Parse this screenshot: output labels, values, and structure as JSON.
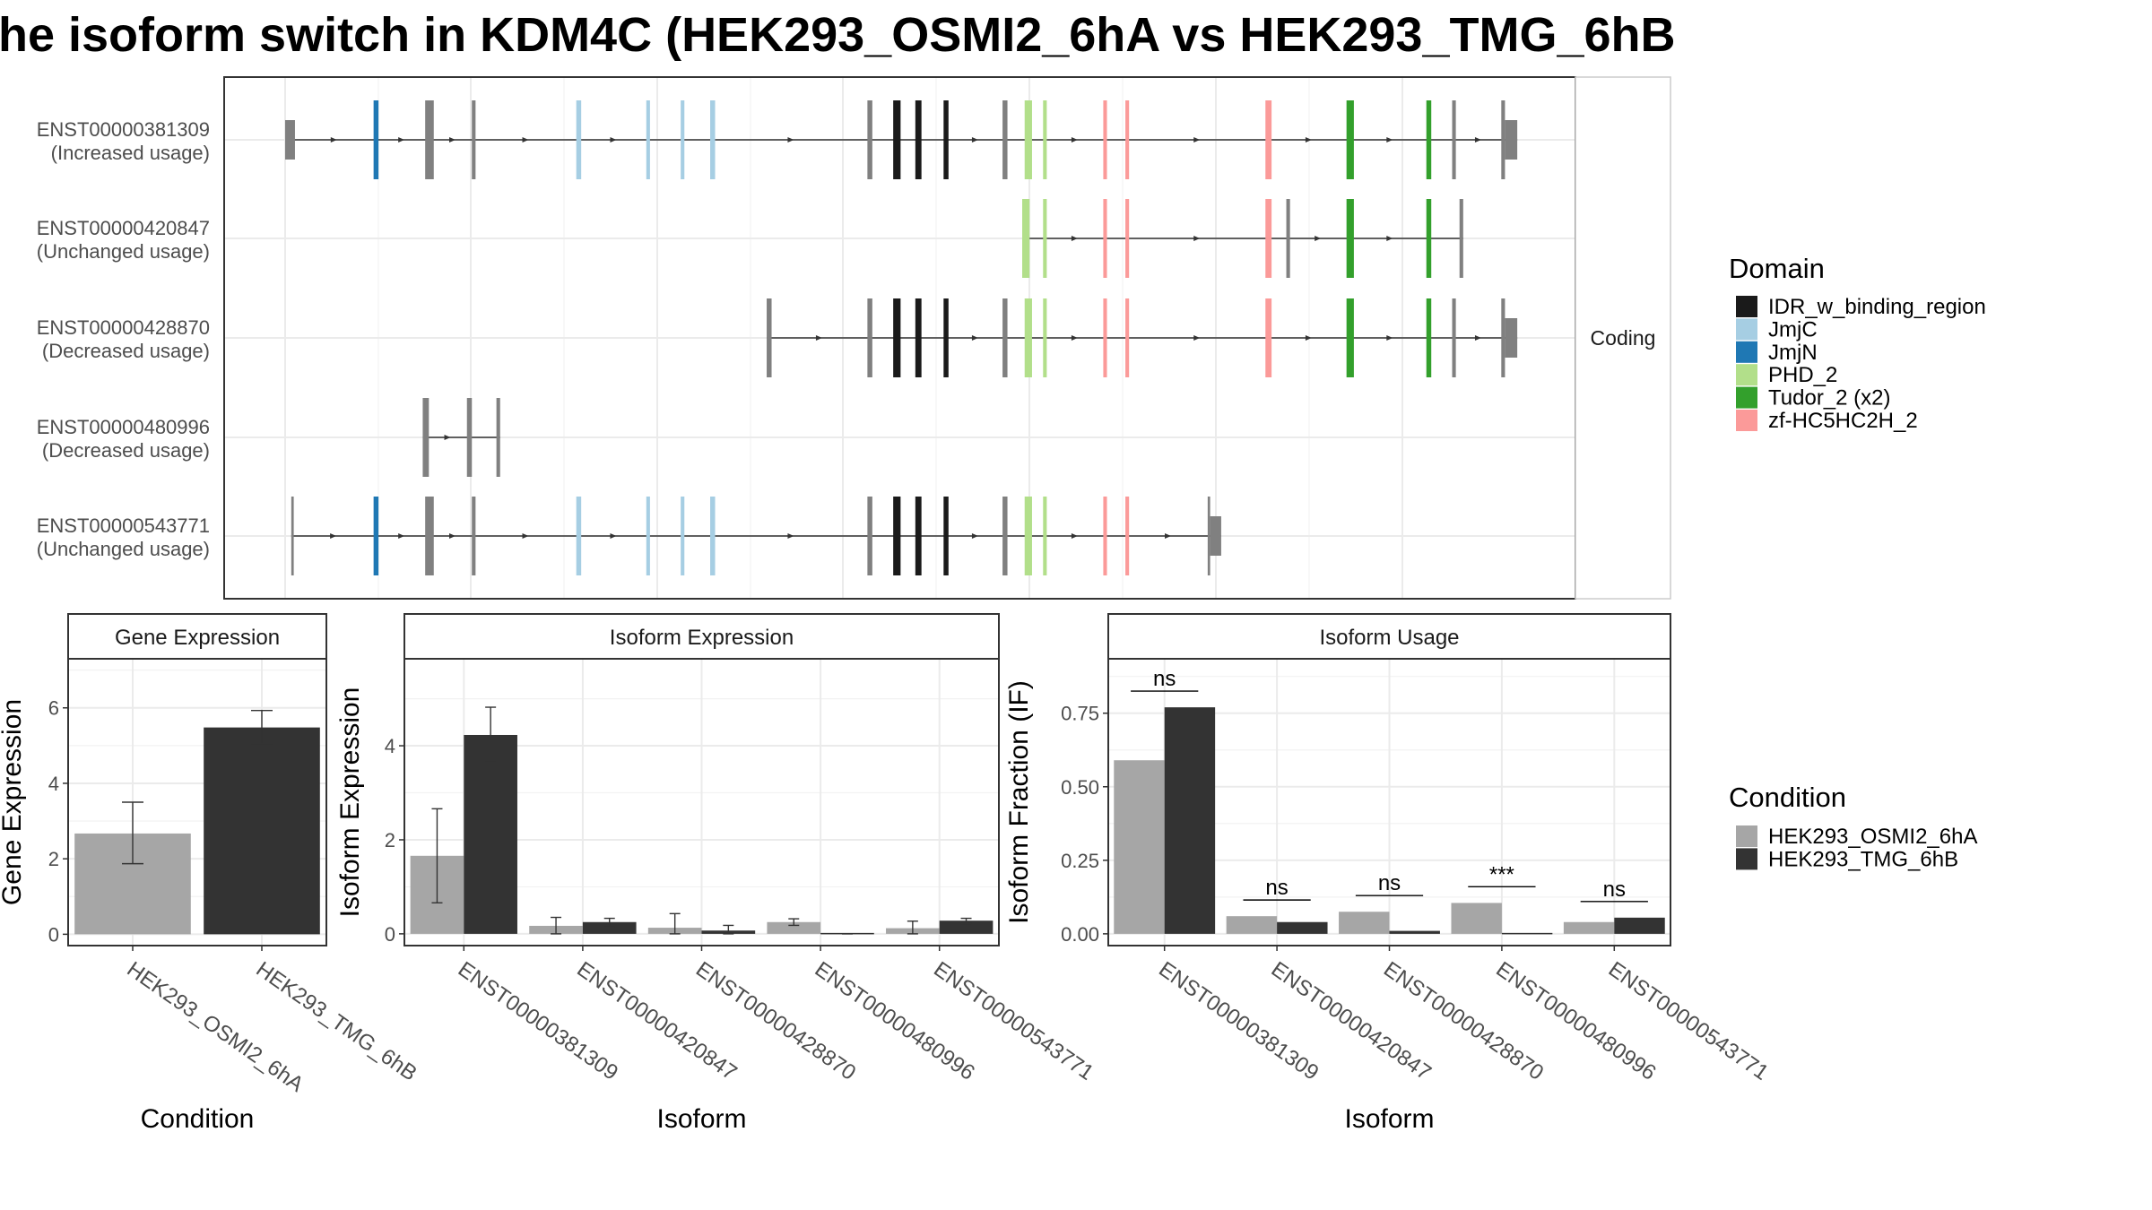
{
  "title": "he isoform switch in KDM4C (HEK293_OSMI2_6hA vs HEK293_TMG_6hB",
  "colors": {
    "panel_border": "#333333",
    "strip_fill": "#ffffff",
    "grid": "#ebebeb",
    "exon_default": "#808080",
    "condition_a": "#a6a6a6",
    "condition_b": "#333333",
    "domains": {
      "IDR_w_binding_region": "#1a1a1a",
      "JmjC": "#a6cee3",
      "JmjN": "#1f78b4",
      "PHD_2": "#b2df8a",
      "Tudor_2 (x2)": "#33a02c",
      "zf-HC5HC2H_2": "#fb9a99"
    }
  },
  "structure_panel": {
    "facet_label": "Coding",
    "transcripts": [
      {
        "id": "ENST00000381309",
        "usage": "(Increased usage)",
        "exons": [
          [
            0.0,
            0.008,
            "s"
          ],
          [
            0.072,
            0.076,
            "JmjN"
          ],
          [
            0.114,
            0.121,
            "c"
          ],
          [
            0.152,
            0.155,
            "c"
          ],
          [
            0.237,
            0.241,
            "JmjC"
          ],
          [
            0.294,
            0.297,
            "JmjC"
          ],
          [
            0.322,
            0.325,
            "JmjC"
          ],
          [
            0.346,
            0.35,
            "JmjC"
          ],
          [
            0.474,
            0.478,
            "c"
          ],
          [
            0.495,
            0.501,
            "IDR_w_binding_region"
          ],
          [
            0.513,
            0.518,
            "IDR_w_binding_region"
          ],
          [
            0.536,
            0.54,
            "IDR_w_binding_region"
          ],
          [
            0.584,
            0.588,
            "c"
          ],
          [
            0.602,
            0.608,
            "PHD_2"
          ],
          [
            0.617,
            0.62,
            "PHD_2"
          ],
          [
            0.666,
            0.669,
            "zf-HC5HC2H_2"
          ],
          [
            0.684,
            0.687,
            "zf-HC5HC2H_2"
          ],
          [
            0.798,
            0.803,
            "zf-HC5HC2H_2"
          ],
          [
            0.864,
            0.87,
            "Tudor_2 (x2)"
          ],
          [
            0.929,
            0.933,
            "Tudor_2 (x2)"
          ],
          [
            0.95,
            0.953,
            "c"
          ],
          [
            0.99,
            0.993,
            "c"
          ],
          [
            0.993,
            1.003,
            "s"
          ]
        ]
      },
      {
        "id": "ENST00000420847",
        "usage": "(Unchanged usage)",
        "exons": [
          [
            0.6,
            0.606,
            "PHD_2"
          ],
          [
            0.617,
            0.62,
            "PHD_2"
          ],
          [
            0.666,
            0.669,
            "zf-HC5HC2H_2"
          ],
          [
            0.684,
            0.687,
            "zf-HC5HC2H_2"
          ],
          [
            0.798,
            0.803,
            "zf-HC5HC2H_2"
          ],
          [
            0.815,
            0.818,
            "c"
          ],
          [
            0.864,
            0.87,
            "Tudor_2 (x2)"
          ],
          [
            0.929,
            0.933,
            "Tudor_2 (x2)"
          ],
          [
            0.956,
            0.959,
            "c"
          ]
        ]
      },
      {
        "id": "ENST00000428870",
        "usage": "(Decreased usage)",
        "exons": [
          [
            0.392,
            0.396,
            "c"
          ],
          [
            0.474,
            0.478,
            "c"
          ],
          [
            0.495,
            0.501,
            "IDR_w_binding_region"
          ],
          [
            0.513,
            0.518,
            "IDR_w_binding_region"
          ],
          [
            0.536,
            0.54,
            "IDR_w_binding_region"
          ],
          [
            0.584,
            0.588,
            "c"
          ],
          [
            0.602,
            0.608,
            "PHD_2"
          ],
          [
            0.617,
            0.62,
            "PHD_2"
          ],
          [
            0.666,
            0.669,
            "zf-HC5HC2H_2"
          ],
          [
            0.684,
            0.687,
            "zf-HC5HC2H_2"
          ],
          [
            0.798,
            0.803,
            "zf-HC5HC2H_2"
          ],
          [
            0.864,
            0.87,
            "Tudor_2 (x2)"
          ],
          [
            0.929,
            0.933,
            "Tudor_2 (x2)"
          ],
          [
            0.95,
            0.953,
            "c"
          ],
          [
            0.99,
            0.993,
            "c"
          ],
          [
            0.993,
            1.003,
            "s"
          ]
        ]
      },
      {
        "id": "ENST00000480996",
        "usage": "(Decreased usage)",
        "exons": [
          [
            0.112,
            0.117,
            "c"
          ],
          [
            0.148,
            0.152,
            "c"
          ],
          [
            0.172,
            0.175,
            "c"
          ]
        ]
      },
      {
        "id": "ENST00000543771",
        "usage": "(Unchanged usage)",
        "exons": [
          [
            0.005,
            0.007,
            "c"
          ],
          [
            0.072,
            0.076,
            "JmjN"
          ],
          [
            0.114,
            0.121,
            "c"
          ],
          [
            0.152,
            0.155,
            "c"
          ],
          [
            0.237,
            0.241,
            "JmjC"
          ],
          [
            0.294,
            0.297,
            "JmjC"
          ],
          [
            0.322,
            0.325,
            "JmjC"
          ],
          [
            0.346,
            0.35,
            "JmjC"
          ],
          [
            0.474,
            0.478,
            "c"
          ],
          [
            0.495,
            0.501,
            "IDR_w_binding_region"
          ],
          [
            0.513,
            0.518,
            "IDR_w_binding_region"
          ],
          [
            0.536,
            0.54,
            "IDR_w_binding_region"
          ],
          [
            0.584,
            0.588,
            "c"
          ],
          [
            0.602,
            0.608,
            "PHD_2"
          ],
          [
            0.617,
            0.62,
            "PHD_2"
          ],
          [
            0.666,
            0.669,
            "zf-HC5HC2H_2"
          ],
          [
            0.684,
            0.687,
            "zf-HC5HC2H_2"
          ],
          [
            0.751,
            0.753,
            "c"
          ],
          [
            0.753,
            0.762,
            "s"
          ]
        ]
      }
    ]
  },
  "legend_domain": {
    "title": "Domain",
    "items": [
      "IDR_w_binding_region",
      "JmjC",
      "JmjN",
      "PHD_2",
      "Tudor_2 (x2)",
      "zf-HC5HC2H_2"
    ]
  },
  "legend_condition": {
    "title": "Condition",
    "items": [
      "HEK293_OSMI2_6hA",
      "HEK293_TMG_6hB"
    ]
  },
  "chart_data": [
    {
      "type": "bar",
      "title": "Gene Expression",
      "xlabel": "Condition",
      "ylabel": "Gene Expression",
      "categories": [
        "HEK293_OSMI2_6hA",
        "HEK293_TMG_6hB"
      ],
      "values": [
        2.67,
        5.48
      ],
      "error": [
        [
          1.87,
          3.5
        ],
        [
          5.05,
          5.93
        ]
      ],
      "ylim": [
        -0.3,
        7.3
      ],
      "yticks": [
        0,
        2,
        4,
        6
      ]
    },
    {
      "type": "bar",
      "title": "Isoform Expression",
      "xlabel": "Isoform",
      "ylabel": "Isoform Expression",
      "categories": [
        "ENST00000381309",
        "ENST00000420847",
        "ENST00000428870",
        "ENST00000480996",
        "ENST00000543771"
      ],
      "series": [
        {
          "name": "HEK293_OSMI2_6hA",
          "values": [
            1.66,
            0.17,
            0.13,
            0.25,
            0.12
          ],
          "error": [
            [
              0.66,
              2.66
            ],
            [
              0.0,
              0.35
            ],
            [
              0.0,
              0.43
            ],
            [
              0.18,
              0.32
            ],
            [
              0.0,
              0.27
            ]
          ]
        },
        {
          "name": "HEK293_TMG_6hB",
          "values": [
            4.23,
            0.25,
            0.07,
            0.0,
            0.28
          ],
          "error": [
            [
              3.68,
              4.82
            ],
            [
              0.15,
              0.33
            ],
            [
              0.0,
              0.18
            ],
            [
              0.0,
              0.0
            ],
            [
              0.22,
              0.33
            ]
          ]
        }
      ],
      "ylim": [
        -0.25,
        5.85
      ],
      "yticks": [
        0,
        2,
        4
      ]
    },
    {
      "type": "bar",
      "title": "Isoform Usage",
      "xlabel": "Isoform",
      "ylabel": "Isoform Fraction (IF)",
      "categories": [
        "ENST00000381309",
        "ENST00000420847",
        "ENST00000428870",
        "ENST00000480996",
        "ENST00000543771"
      ],
      "series": [
        {
          "name": "HEK293_OSMI2_6hA",
          "values": [
            0.59,
            0.06,
            0.075,
            0.105,
            0.04
          ]
        },
        {
          "name": "HEK293_TMG_6hB",
          "values": [
            0.77,
            0.04,
            0.01,
            0.0,
            0.055
          ]
        }
      ],
      "significance": [
        "ns",
        "ns",
        "ns",
        "***",
        "ns"
      ],
      "ylim": [
        -0.04,
        0.935
      ],
      "yticks": [
        0.0,
        0.25,
        0.5,
        0.75
      ],
      "ytick_labels": [
        "0.00",
        "0.25",
        "0.50",
        "0.75"
      ]
    }
  ]
}
